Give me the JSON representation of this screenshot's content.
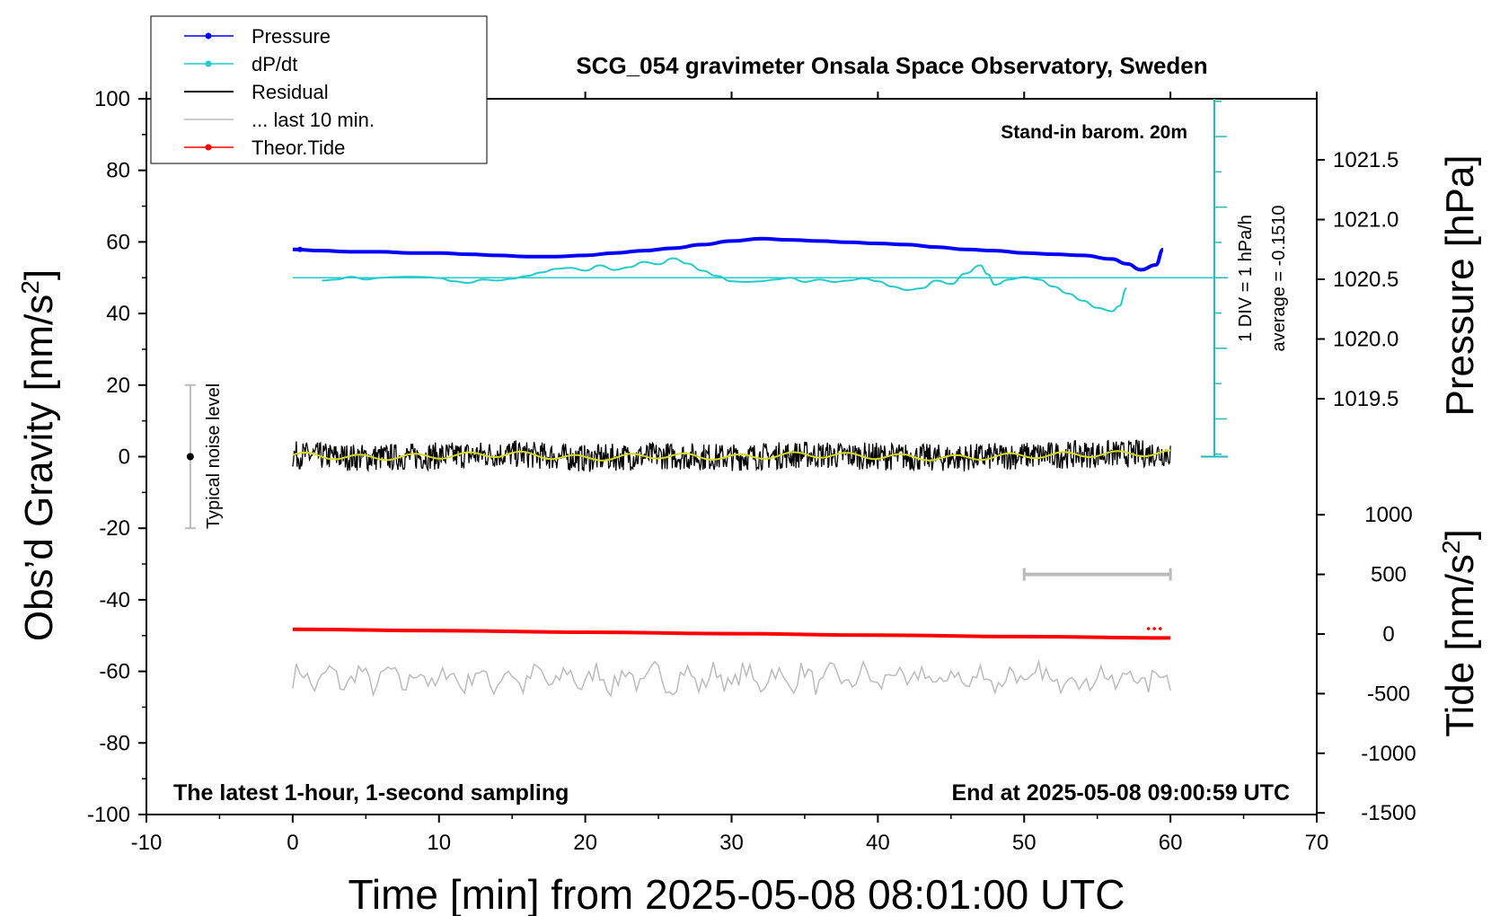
{
  "chart_data": {
    "type": "line",
    "title": "SCG_054 gravimeter Onsala Space Observatory, Sweden",
    "xlabel": "Time [min] from 2025-05-08 08:01:00 UTC",
    "ylabel_left": "Obs’d Gravity [nm/s²]",
    "ylabel_pressure": "Pressure [hPa]",
    "ylabel_tide": "Tide [nm/s²]",
    "xlim": [
      -10,
      70
    ],
    "ylim": [
      -100,
      100
    ],
    "pressure_range": [
      1019.0,
      1022.0
    ],
    "tide_range": [
      -1500,
      1000
    ],
    "x_ticks": [
      "-10",
      "0",
      "10",
      "20",
      "30",
      "40",
      "50",
      "60",
      "70"
    ],
    "y_ticks": [
      "100",
      "80",
      "60",
      "40",
      "20",
      "0",
      "-20",
      "-40",
      "-60",
      "-80",
      "-100"
    ],
    "pressure_ticks": [
      "1021.5",
      "1021.0",
      "1020.5",
      "1020.0",
      "1019.5"
    ],
    "tide_ticks": [
      "1000",
      "500",
      "0",
      "-500",
      "-1000",
      "-1500"
    ],
    "annotations": {
      "barometer": "Stand-in barom. 20m",
      "div_label": "1 DIV = 1 hPa/h",
      "average_label": "average = -0.1510",
      "noise_label": "Typical noise level",
      "bottom_left": "The latest 1-hour, 1-second sampling",
      "bottom_right": "End at 2025-05-08 09:00:59 UTC"
    },
    "legend": [
      {
        "label": "Pressure",
        "color": "#0000ff",
        "marker": true
      },
      {
        "label": "dP/dt",
        "color": "#22cccc",
        "marker": true
      },
      {
        "label": "Residual",
        "color": "#000000",
        "marker": false
      },
      {
        "label": "... last 10 min.",
        "color": "#bbbbbb",
        "marker": false
      },
      {
        "label": "Theor.Tide",
        "color": "#ff0000",
        "marker": true
      }
    ],
    "legend_position": "top-left",
    "series": [
      {
        "name": "Pressure",
        "color": "#0000ff",
        "axis": "pressure",
        "x": [
          0,
          2,
          4,
          6,
          8,
          10,
          12,
          14,
          16,
          18,
          20,
          22,
          24,
          26,
          28,
          30,
          32,
          34,
          36,
          38,
          40,
          42,
          44,
          46,
          48,
          50,
          52,
          54,
          56,
          57,
          58,
          59,
          59.5
        ],
        "y": [
          1020.75,
          1020.74,
          1020.73,
          1020.73,
          1020.72,
          1020.72,
          1020.71,
          1020.7,
          1020.69,
          1020.69,
          1020.7,
          1020.72,
          1020.74,
          1020.76,
          1020.79,
          1020.82,
          1020.84,
          1020.83,
          1020.82,
          1020.81,
          1020.8,
          1020.79,
          1020.77,
          1020.75,
          1020.74,
          1020.72,
          1020.71,
          1020.7,
          1020.67,
          1020.63,
          1020.58,
          1020.62,
          1020.75
        ]
      },
      {
        "name": "dP/dt",
        "color": "#22cccc",
        "axis": "dpdt",
        "x": [
          2,
          3,
          4,
          5,
          6,
          7,
          8,
          9,
          10,
          11,
          12,
          13,
          14,
          15,
          16,
          17,
          18,
          19,
          20,
          21,
          22,
          23,
          24,
          25,
          26,
          27,
          28,
          29,
          30,
          31,
          32,
          33,
          34,
          35,
          36,
          37,
          38,
          39,
          40,
          41,
          42,
          43,
          44,
          45,
          46,
          47,
          47.5,
          48,
          49,
          50,
          51,
          52,
          53,
          54,
          55,
          56,
          56.5,
          57
        ],
        "y": [
          -0.08,
          -0.05,
          0.03,
          -0.05,
          0.0,
          0.02,
          0.03,
          0.02,
          -0.01,
          -0.1,
          -0.15,
          -0.05,
          -0.08,
          -0.03,
          0.05,
          0.15,
          0.25,
          0.28,
          0.2,
          0.35,
          0.22,
          0.3,
          0.45,
          0.38,
          0.55,
          0.4,
          0.2,
          0.05,
          -0.1,
          -0.12,
          -0.1,
          -0.05,
          0.0,
          -0.12,
          -0.05,
          -0.12,
          -0.08,
          -0.02,
          -0.1,
          -0.25,
          -0.35,
          -0.3,
          -0.08,
          -0.18,
          0.12,
          0.35,
          0.1,
          -0.2,
          -0.05,
          0.02,
          -0.05,
          -0.25,
          -0.45,
          -0.65,
          -0.85,
          -0.95,
          -0.8,
          -0.3
        ]
      },
      {
        "name": "Residual",
        "color": "#000000",
        "axis": "gravity",
        "x": [
          0,
          5,
          10,
          15,
          20,
          25,
          30,
          35,
          40,
          45,
          50,
          55,
          60
        ],
        "y": [
          0.5,
          -0.3,
          0.2,
          0.8,
          -0.5,
          0.3,
          -0.2,
          0.6,
          0.1,
          -0.4,
          0.3,
          0.7,
          1.0
        ],
        "noise_amplitude": 3.5
      },
      {
        "name": "Theor.Tide",
        "color": "#ff0000",
        "axis": "tide",
        "x": [
          0,
          10,
          20,
          30,
          40,
          50,
          60
        ],
        "y": [
          40,
          28,
          15,
          3,
          -10,
          -22,
          -33
        ]
      },
      {
        "name": "Residual (lower trace)",
        "color": "#c0c0c0",
        "axis": "gravity",
        "x": [
          0,
          10,
          20,
          30,
          40,
          50,
          60
        ],
        "y": [
          -62,
          -62,
          -62,
          -62,
          -62,
          -62,
          -62
        ],
        "noise_amplitude": 3.5
      }
    ],
    "noise_bar": {
      "x": -7,
      "y_from": -20,
      "y_to": 20,
      "y_center": 0
    },
    "last10_bar": {
      "x_from": 50,
      "x_to": 60,
      "tide_level": 500
    }
  }
}
